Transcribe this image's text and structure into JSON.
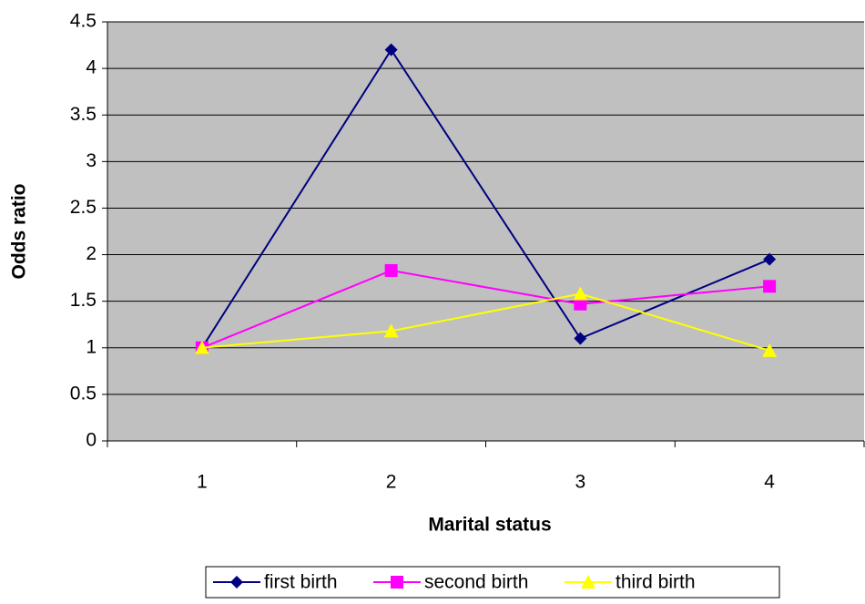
{
  "chart_data": {
    "type": "line",
    "x_label": "Marital status",
    "y_label": "Odds ratio",
    "categories": [
      "1",
      "2",
      "3",
      "4"
    ],
    "series": [
      {
        "name": "first birth",
        "color": "#000080",
        "marker": "diamond",
        "values": [
          1,
          4.2,
          1.1,
          1.95
        ]
      },
      {
        "name": "second birth",
        "color": "#FF00FF",
        "marker": "square",
        "values": [
          1,
          1.83,
          1.47,
          1.66
        ]
      },
      {
        "name": "third birth",
        "color": "#FFFF00",
        "marker": "triangle",
        "values": [
          1,
          1.18,
          1.58,
          0.97
        ]
      }
    ],
    "ylim": [
      0,
      4.5
    ],
    "yticks": [
      0,
      0.5,
      1,
      1.5,
      2,
      2.5,
      3,
      3.5,
      4,
      4.5
    ],
    "grid": true,
    "plot_background": "#C0C0C0",
    "legend": "bottom"
  }
}
